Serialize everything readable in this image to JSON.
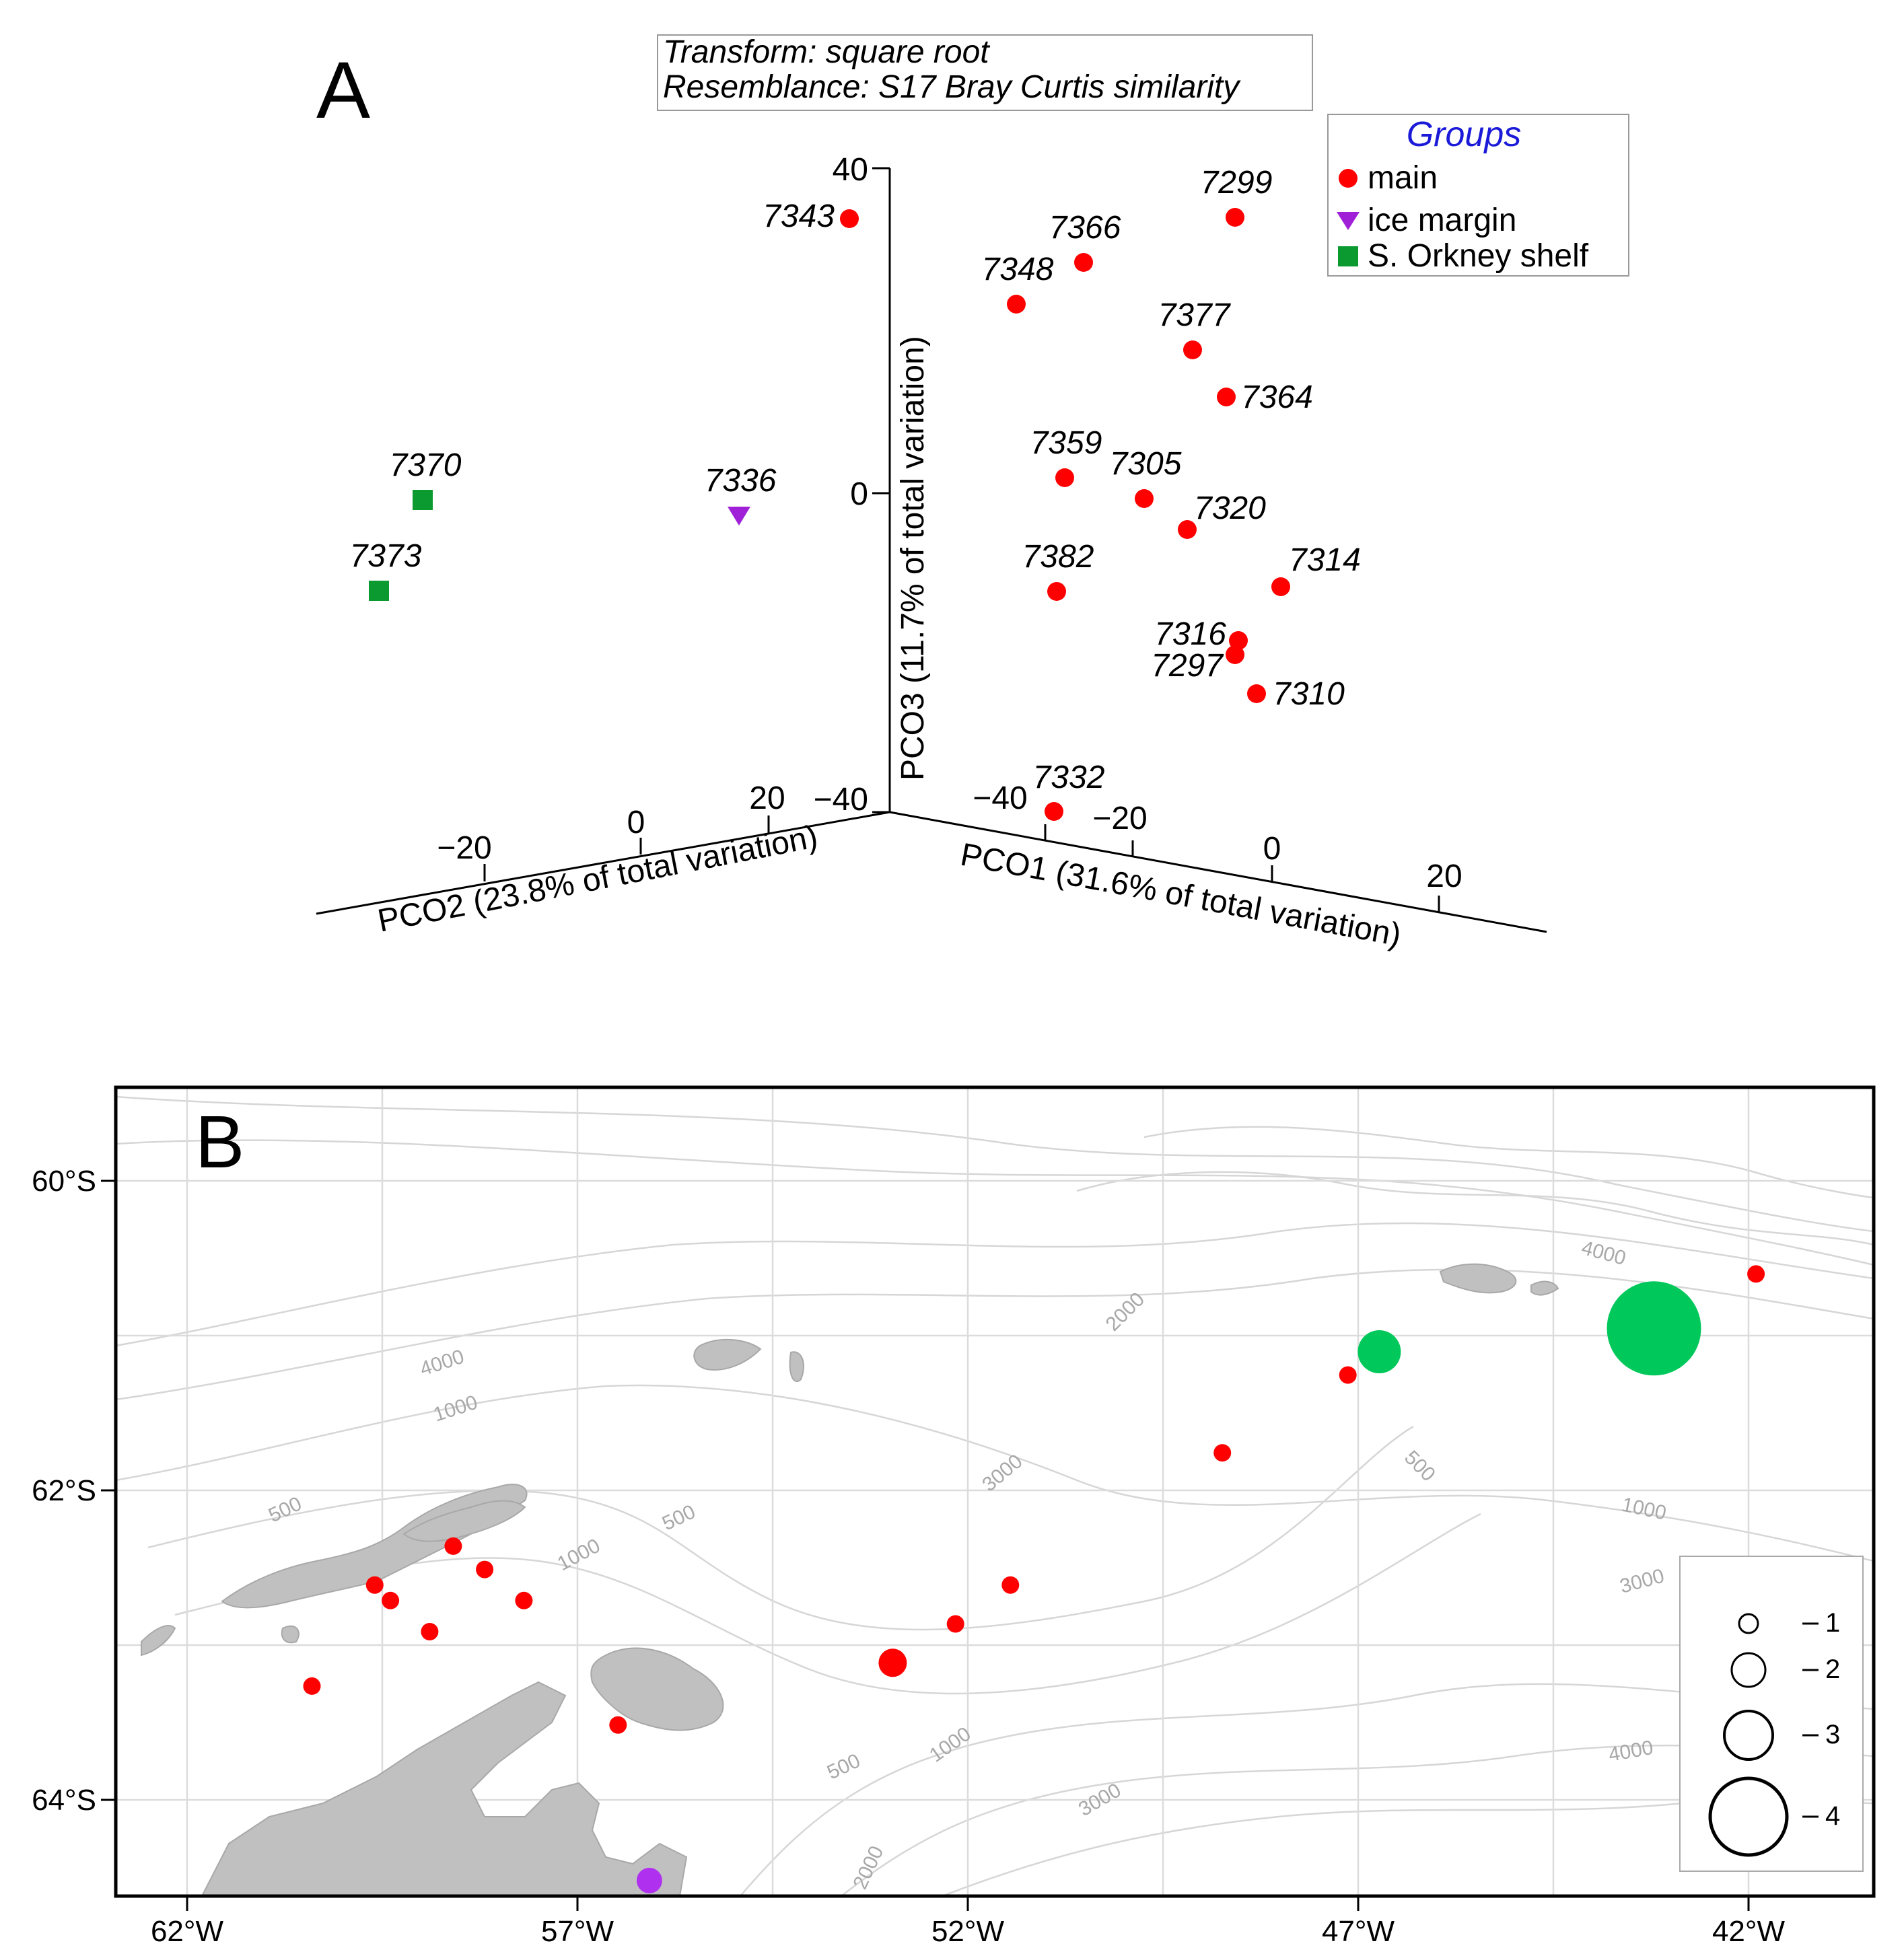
{
  "panel_a": {
    "label": "A",
    "info_box": {
      "line1": "Transform: square root",
      "line2": "Resemblance: S17 Bray Curtis similarity"
    },
    "legend": {
      "title": "Groups",
      "title_color": "#1a1ad8",
      "entries": [
        {
          "label": "main",
          "marker": "circle",
          "color": "#ff0000"
        },
        {
          "label": "ice margin",
          "marker": "triangle-down",
          "color": "#a020d8"
        },
        {
          "label": "S. Orkney shelf",
          "marker": "square",
          "color": "#0a9a30"
        }
      ]
    }
  },
  "chart_data": [
    {
      "type": "scatter",
      "projection": "3d",
      "title": "",
      "axes": {
        "pco1": {
          "label": "PCO1 (31.6% of total variation)",
          "ticks": [
            "−40",
            "−20",
            "0",
            "20"
          ]
        },
        "pco2": {
          "label": "PCO2 (23.8% of total variation)",
          "ticks": [
            "−20",
            "0",
            "20"
          ]
        },
        "pco3": {
          "label": "PCO3 (11.7% of total variation)",
          "ticks": [
            "40",
            "0",
            "−40"
          ]
        }
      },
      "groups": [
        "main",
        "ice margin",
        "S. Orkney shelf"
      ],
      "series": [
        {
          "name": "main",
          "points": [
            {
              "id": "7343",
              "pco3": 34
            },
            {
              "id": "7299",
              "pco3": 34
            },
            {
              "id": "7366",
              "pco3": 28
            },
            {
              "id": "7348",
              "pco3": 23
            },
            {
              "id": "7377",
              "pco3": 18
            },
            {
              "id": "7364",
              "pco3": 12
            },
            {
              "id": "7359",
              "pco3": 2
            },
            {
              "id": "7305",
              "pco3": -1
            },
            {
              "id": "7320",
              "pco3": -5
            },
            {
              "id": "7314",
              "pco3": -11
            },
            {
              "id": "7382",
              "pco3": -12
            },
            {
              "id": "7316",
              "pco3": -18
            },
            {
              "id": "7297",
              "pco3": -20
            },
            {
              "id": "7310",
              "pco3": -25
            },
            {
              "id": "7332",
              "pco3": -39
            }
          ]
        },
        {
          "name": "ice margin",
          "points": [
            {
              "id": "7336",
              "pco3": -3
            }
          ]
        },
        {
          "name": "S. Orkney shelf",
          "points": [
            {
              "id": "7370",
              "pco3": -1
            },
            {
              "id": "7373",
              "pco3": -12
            }
          ]
        }
      ]
    },
    {
      "type": "bubble-map",
      "title": "",
      "lon_ticks": [
        "62°W",
        "57°W",
        "52°W",
        "47°W",
        "42°W"
      ],
      "lat_ticks": [
        "60°S",
        "62°S",
        "64°S"
      ],
      "lon_range": [
        -62.9,
        -40.5
      ],
      "lat_range": [
        -64.6,
        -59.4
      ],
      "contour_labels": [
        "4000",
        "1000",
        "500",
        "500",
        "1000",
        "2000",
        "3000",
        "500",
        "1000",
        "3000",
        "4000",
        "4000",
        "1000",
        "500",
        "2000",
        "3000"
      ],
      "size_legend": [
        {
          "label": "1",
          "value": 1
        },
        {
          "label": "2",
          "value": 2
        },
        {
          "label": "3",
          "value": 3
        },
        {
          "label": "4",
          "value": 4
        }
      ],
      "sites": [
        {
          "lon": -42.0,
          "lat": -60.6,
          "size": 1,
          "group": "main"
        },
        {
          "lon": -43.3,
          "lat": -60.95,
          "size": 4,
          "group": "S. Orkney shelf"
        },
        {
          "lon": -46.8,
          "lat": -61.1,
          "size": 2,
          "group": "S. Orkney shelf"
        },
        {
          "lon": -47.2,
          "lat": -61.25,
          "size": 1,
          "group": "main"
        },
        {
          "lon": -48.8,
          "lat": -61.75,
          "size": 1,
          "group": "main"
        },
        {
          "lon": -51.5,
          "lat": -62.6,
          "size": 1,
          "group": "main"
        },
        {
          "lon": -52.2,
          "lat": -62.85,
          "size": 1,
          "group": "main"
        },
        {
          "lon": -53.0,
          "lat": -63.1,
          "size": 1.4,
          "group": "main"
        },
        {
          "lon": -56.5,
          "lat": -63.5,
          "size": 1,
          "group": "main"
        },
        {
          "lon": -57.7,
          "lat": -62.7,
          "size": 1,
          "group": "main"
        },
        {
          "lon": -58.2,
          "lat": -62.5,
          "size": 1,
          "group": "main"
        },
        {
          "lon": -58.6,
          "lat": -62.35,
          "size": 1,
          "group": "main"
        },
        {
          "lon": -58.9,
          "lat": -62.9,
          "size": 1,
          "group": "main"
        },
        {
          "lon": -59.4,
          "lat": -62.7,
          "size": 1,
          "group": "main"
        },
        {
          "lon": -59.6,
          "lat": -62.6,
          "size": 1,
          "group": "main"
        },
        {
          "lon": -60.4,
          "lat": -63.25,
          "size": 1,
          "group": "main"
        },
        {
          "lon": -56.1,
          "lat": -64.5,
          "size": 1.3,
          "group": "ice margin"
        }
      ]
    }
  ],
  "panel_b": {
    "label": "B",
    "colors": {
      "main": "#ff0000",
      "S. Orkney shelf": "#00c85a",
      "ice margin": "#b030f0",
      "land": "#c0c0c0"
    }
  }
}
